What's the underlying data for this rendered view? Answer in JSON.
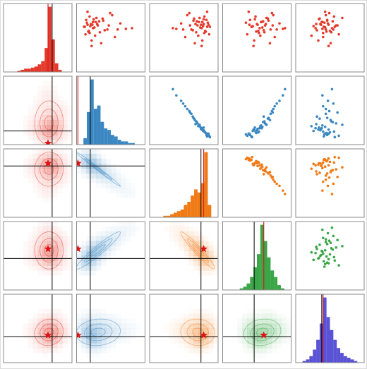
{
  "chart_data": {
    "type": "pairplot",
    "xlim": [
      0,
      10
    ],
    "ylim": [
      0,
      10
    ],
    "variables": [
      {
        "color": "#e43a2b",
        "truth": 7.1,
        "star": 6.5,
        "bins": [
          0,
          0.5,
          1,
          1.5,
          2,
          2.5,
          3,
          3.5,
          4,
          4.5,
          5,
          5.5,
          6,
          6.5,
          7,
          7.5,
          8,
          8.5,
          9,
          9.5,
          10
        ],
        "counts": [
          0,
          0,
          0,
          0,
          1,
          2,
          3,
          3,
          4,
          5,
          7,
          10,
          22,
          60,
          30,
          8,
          2,
          0,
          0,
          0
        ]
      },
      {
        "color": "#3a87c2",
        "truth": 2.0,
        "star": 0.2,
        "bins": [
          0,
          0.5,
          1,
          1.5,
          2,
          2.5,
          3,
          3.5,
          4,
          4.5,
          5,
          5.5,
          6,
          6.5,
          7,
          7.5,
          8,
          8.5,
          9,
          9.5,
          10
        ],
        "counts": [
          0,
          0,
          4,
          20,
          40,
          22,
          24,
          14,
          10,
          9,
          6,
          5,
          3,
          2,
          2,
          1,
          1,
          0,
          0,
          0
        ]
      },
      {
        "color": "#f07a16",
        "truth": 7.5,
        "star": 7.9,
        "bins": [
          0,
          0.5,
          1,
          1.5,
          2,
          2.5,
          3,
          3.5,
          4,
          4.5,
          5,
          5.5,
          6,
          6.5,
          7,
          7.5,
          8,
          8.5,
          9,
          9.5,
          10
        ],
        "counts": [
          0,
          0,
          0,
          0,
          1,
          1,
          2,
          3,
          4,
          5,
          8,
          10,
          14,
          18,
          16,
          22,
          42,
          8,
          0,
          0
        ]
      },
      {
        "color": "#3aa648",
        "truth": 4.6,
        "star": 6.0,
        "bins": [
          0,
          0.5,
          1,
          1.5,
          2,
          2.5,
          3,
          3.5,
          4,
          4.5,
          5,
          5.5,
          6,
          6.5,
          7,
          7.5,
          8,
          8.5,
          9,
          9.5,
          10
        ],
        "counts": [
          0,
          0,
          0,
          0,
          0,
          1,
          2,
          4,
          8,
          14,
          22,
          40,
          30,
          20,
          12,
          8,
          3,
          1,
          0,
          0
        ]
      },
      {
        "color": "#5a53d6",
        "truth": 3.8,
        "star": 4.0,
        "bins": [
          0,
          0.5,
          1,
          1.5,
          2,
          2.5,
          3,
          3.5,
          4,
          4.5,
          5,
          5.5,
          6,
          6.5,
          7,
          7.5,
          8,
          8.5,
          9,
          9.5,
          10
        ],
        "counts": [
          0,
          0,
          1,
          2,
          4,
          8,
          14,
          24,
          40,
          28,
          20,
          14,
          9,
          6,
          4,
          3,
          2,
          1,
          0,
          0
        ]
      }
    ],
    "samples": [
      [
        6.6,
        1.2,
        8.4,
        4.2,
        4.1
      ],
      [
        7.0,
        2.1,
        7.9,
        5.0,
        3.6
      ],
      [
        5.8,
        3.4,
        6.8,
        6.1,
        5.2
      ],
      [
        6.9,
        1.6,
        8.6,
        3.9,
        4.8
      ],
      [
        7.3,
        2.8,
        7.2,
        5.6,
        3.9
      ],
      [
        6.2,
        4.5,
        6.1,
        7.0,
        4.4
      ],
      [
        8.1,
        1.9,
        8.0,
        4.8,
        5.6
      ],
      [
        6.4,
        2.4,
        7.6,
        5.4,
        2.9
      ],
      [
        5.1,
        5.6,
        5.2,
        7.6,
        4.0
      ],
      [
        7.6,
        1.4,
        8.3,
        4.0,
        4.6
      ],
      [
        6.8,
        3.1,
        7.0,
        6.2,
        5.9
      ],
      [
        4.6,
        2.2,
        7.7,
        4.6,
        3.3
      ],
      [
        7.1,
        6.4,
        4.6,
        8.3,
        4.7
      ],
      [
        6.0,
        1.8,
        8.1,
        5.2,
        5.0
      ],
      [
        7.8,
        3.8,
        6.5,
        6.6,
        3.5
      ],
      [
        6.5,
        2.6,
        7.4,
        5.8,
        4.3
      ],
      [
        5.5,
        1.3,
        8.7,
        3.6,
        6.3
      ],
      [
        8.6,
        4.9,
        5.8,
        7.2,
        4.9
      ],
      [
        6.7,
        2.0,
        7.8,
        4.4,
        2.6
      ],
      [
        7.4,
        3.3,
        6.9,
        5.9,
        5.4
      ],
      [
        6.3,
        7.2,
        3.9,
        8.8,
        3.9
      ],
      [
        5.9,
        1.7,
        8.2,
        4.9,
        4.5
      ],
      [
        7.9,
        2.9,
        7.3,
        6.4,
        6.8
      ],
      [
        6.1,
        4.1,
        6.3,
        6.0,
        3.1
      ],
      [
        7.2,
        1.5,
        8.5,
        3.4,
        4.2
      ],
      [
        4.2,
        3.6,
        6.6,
        6.9,
        5.1
      ],
      [
        6.9,
        2.3,
        7.5,
        5.1,
        3.7
      ],
      [
        8.3,
        5.2,
        5.5,
        7.4,
        4.4
      ],
      [
        6.6,
        1.1,
        8.8,
        4.3,
        5.7
      ],
      [
        5.3,
        2.7,
        7.1,
        5.5,
        2.3
      ],
      [
        7.5,
        3.9,
        6.4,
        6.7,
        4.6
      ],
      [
        6.4,
        8.1,
        3.4,
        9.1,
        5.3
      ],
      [
        7.7,
        2.5,
        7.9,
        4.7,
        3.4
      ],
      [
        5.7,
        1.9,
        8.0,
        5.3,
        4.0
      ],
      [
        6.8,
        4.7,
        5.9,
        7.3,
        6.1
      ],
      [
        3.8,
        2.2,
        7.6,
        4.5,
        4.8
      ],
      [
        7.0,
        3.0,
        6.7,
        6.3,
        3.0
      ],
      [
        8.8,
        1.6,
        8.4,
        3.8,
        4.3
      ],
      [
        6.2,
        6.0,
        4.9,
        7.9,
        5.5
      ],
      [
        7.3,
        2.4,
        7.7,
        5.7,
        3.8
      ]
    ]
  }
}
